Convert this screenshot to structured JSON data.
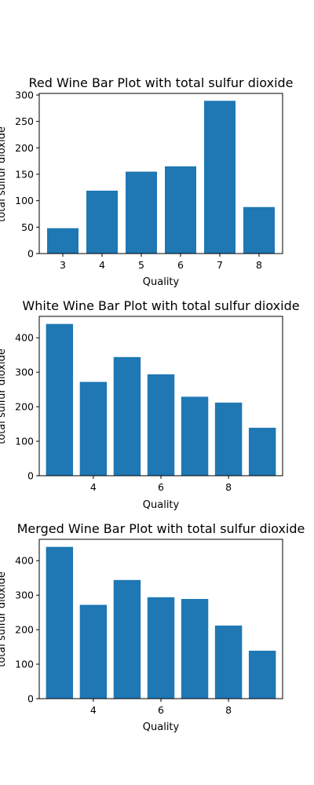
{
  "colors": {
    "bar": "#1f77b4",
    "axis": "#000000",
    "background": "#ffffff"
  },
  "chart_data": [
    {
      "type": "bar",
      "title": "Red Wine Bar Plot with total sulfur dioxide",
      "xlabel": "Quality",
      "ylabel": "total sulfur dioxide",
      "x": [
        3,
        4,
        5,
        6,
        7,
        8
      ],
      "values": [
        48,
        119,
        155,
        165,
        289,
        88
      ],
      "xlim": [
        2.4,
        8.6
      ],
      "ylim": [
        0,
        303
      ],
      "xticks": [
        3,
        4,
        5,
        6,
        7,
        8
      ],
      "yticks": [
        0,
        50,
        100,
        150,
        200,
        250,
        300
      ],
      "grid": false
    },
    {
      "type": "bar",
      "title": "White Wine Bar Plot with total sulfur dioxide",
      "xlabel": "Quality",
      "ylabel": "total sulfur dioxide",
      "x": [
        3,
        4,
        5,
        6,
        7,
        8,
        9
      ],
      "values": [
        440,
        272,
        344,
        294,
        229,
        212,
        139
      ],
      "xlim": [
        2.4,
        9.6
      ],
      "ylim": [
        0,
        462
      ],
      "xticks": [
        4,
        6,
        8
      ],
      "yticks": [
        0,
        100,
        200,
        300,
        400
      ],
      "grid": false
    },
    {
      "type": "bar",
      "title": "Merged Wine Bar Plot with total sulfur dioxide",
      "xlabel": "Quality",
      "ylabel": "total sulfur dioxide",
      "x": [
        3,
        4,
        5,
        6,
        7,
        8,
        9
      ],
      "values": [
        440,
        272,
        344,
        294,
        289,
        212,
        139
      ],
      "xlim": [
        2.4,
        9.6
      ],
      "ylim": [
        0,
        462
      ],
      "xticks": [
        4,
        6,
        8
      ],
      "yticks": [
        0,
        100,
        200,
        300,
        400
      ],
      "grid": false
    }
  ]
}
